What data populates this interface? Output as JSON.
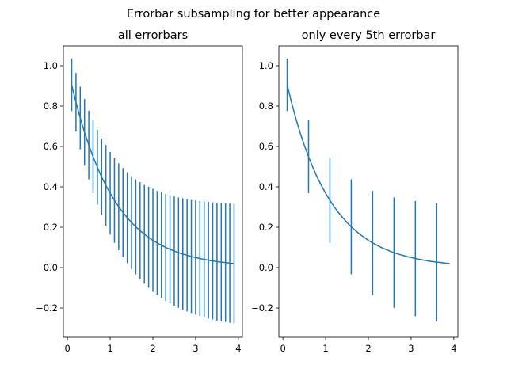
{
  "figure": {
    "suptitle": "Errorbar subsampling for better appearance"
  },
  "colors": {
    "series": "#1f77b4",
    "axes": "#000000",
    "background": "#ffffff"
  },
  "chart_data": [
    {
      "type": "line",
      "title": "all errorbars",
      "xlabel": "",
      "ylabel": "",
      "xlim": [
        -0.095,
        4.095
      ],
      "ylim": [
        -0.345,
        1.098
      ],
      "xticks": [
        "0",
        "1",
        "2",
        "3",
        "4"
      ],
      "yticks": [
        "−0.2",
        "0.0",
        "0.2",
        "0.4",
        "0.6",
        "0.8",
        "1.0"
      ],
      "grid": false,
      "x": [
        0.1,
        0.2,
        0.3,
        0.4,
        0.5,
        0.6,
        0.7,
        0.8,
        0.9,
        1.0,
        1.1,
        1.2,
        1.3,
        1.4,
        1.5,
        1.6,
        1.7,
        1.8,
        1.9,
        2.0,
        2.1,
        2.2,
        2.3,
        2.4,
        2.5,
        2.6,
        2.7,
        2.8,
        2.9,
        3.0,
        3.1,
        3.2,
        3.3,
        3.4,
        3.5,
        3.6,
        3.7,
        3.8,
        3.9
      ],
      "y": [
        0.905,
        0.819,
        0.741,
        0.67,
        0.607,
        0.549,
        0.497,
        0.449,
        0.407,
        0.368,
        0.333,
        0.301,
        0.273,
        0.247,
        0.223,
        0.202,
        0.183,
        0.165,
        0.15,
        0.135,
        0.122,
        0.111,
        0.1,
        0.091,
        0.082,
        0.074,
        0.067,
        0.061,
        0.055,
        0.05,
        0.045,
        0.041,
        0.037,
        0.033,
        0.03,
        0.027,
        0.025,
        0.022,
        0.02
      ],
      "yerr": [
        0.13,
        0.145,
        0.155,
        0.165,
        0.17,
        0.18,
        0.185,
        0.19,
        0.2,
        0.205,
        0.21,
        0.215,
        0.22,
        0.225,
        0.23,
        0.235,
        0.24,
        0.245,
        0.25,
        0.255,
        0.258,
        0.262,
        0.265,
        0.268,
        0.27,
        0.273,
        0.276,
        0.278,
        0.28,
        0.283,
        0.285,
        0.287,
        0.289,
        0.29,
        0.292,
        0.293,
        0.294,
        0.295,
        0.296
      ],
      "errorevery": 1
    },
    {
      "type": "line",
      "title": "only every 5th errorbar",
      "xlabel": "",
      "ylabel": "",
      "xlim": [
        -0.095,
        4.095
      ],
      "ylim": [
        -0.345,
        1.098
      ],
      "xticks": [
        "0",
        "1",
        "2",
        "3",
        "4"
      ],
      "yticks": [
        "−0.2",
        "0.0",
        "0.2",
        "0.4",
        "0.6",
        "0.8",
        "1.0"
      ],
      "grid": false,
      "x": [
        0.1,
        0.2,
        0.3,
        0.4,
        0.5,
        0.6,
        0.7,
        0.8,
        0.9,
        1.0,
        1.1,
        1.2,
        1.3,
        1.4,
        1.5,
        1.6,
        1.7,
        1.8,
        1.9,
        2.0,
        2.1,
        2.2,
        2.3,
        2.4,
        2.5,
        2.6,
        2.7,
        2.8,
        2.9,
        3.0,
        3.1,
        3.2,
        3.3,
        3.4,
        3.5,
        3.6,
        3.7,
        3.8,
        3.9
      ],
      "y": [
        0.905,
        0.819,
        0.741,
        0.67,
        0.607,
        0.549,
        0.497,
        0.449,
        0.407,
        0.368,
        0.333,
        0.301,
        0.273,
        0.247,
        0.223,
        0.202,
        0.183,
        0.165,
        0.15,
        0.135,
        0.122,
        0.111,
        0.1,
        0.091,
        0.082,
        0.074,
        0.067,
        0.061,
        0.055,
        0.05,
        0.045,
        0.041,
        0.037,
        0.033,
        0.03,
        0.027,
        0.025,
        0.022,
        0.02
      ],
      "yerr": [
        0.13,
        0.145,
        0.155,
        0.165,
        0.17,
        0.18,
        0.185,
        0.19,
        0.2,
        0.205,
        0.21,
        0.215,
        0.22,
        0.225,
        0.23,
        0.235,
        0.24,
        0.245,
        0.25,
        0.255,
        0.258,
        0.262,
        0.265,
        0.268,
        0.27,
        0.273,
        0.276,
        0.278,
        0.28,
        0.283,
        0.285,
        0.287,
        0.289,
        0.29,
        0.292,
        0.293,
        0.294,
        0.295,
        0.296
      ],
      "errorevery": 5
    }
  ]
}
